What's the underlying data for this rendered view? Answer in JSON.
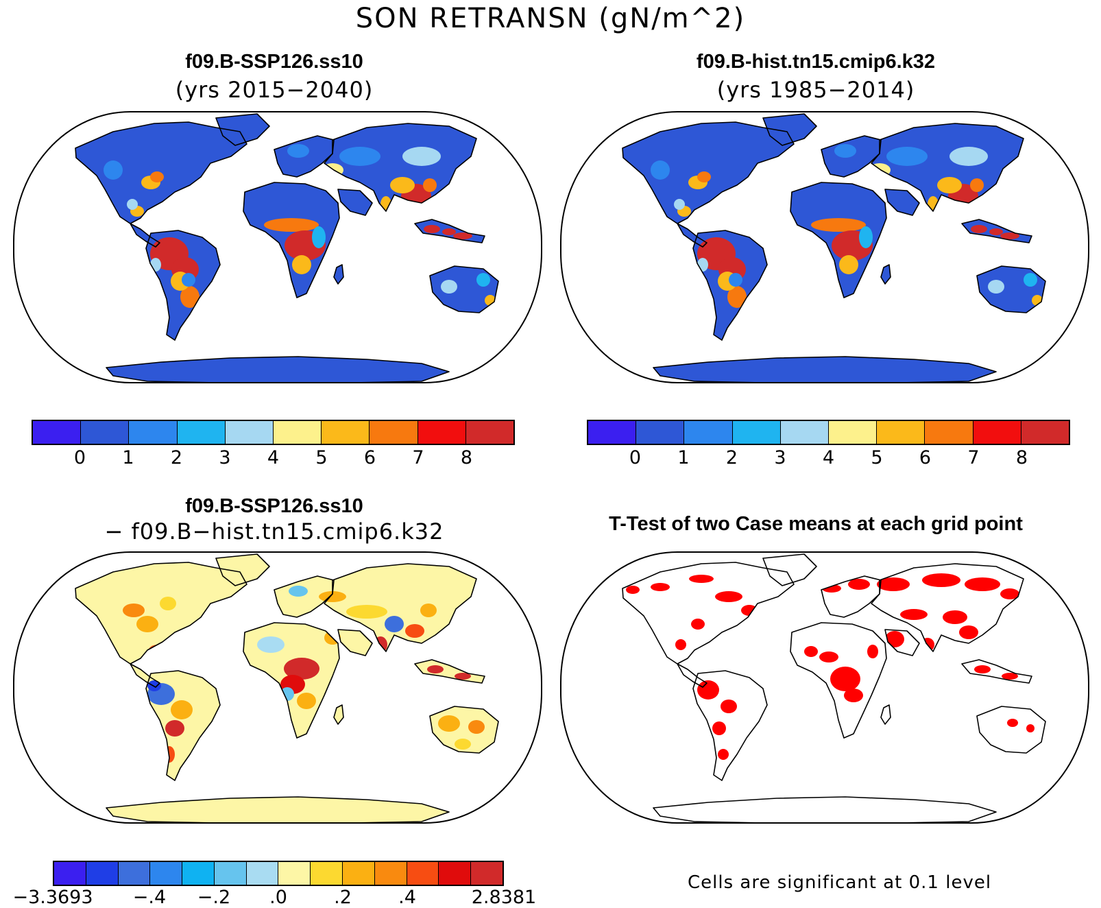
{
  "title": "SON RETRANSN (gN/m^2)",
  "panels": {
    "top_left": {
      "title": "f09.B-SSP126.ss10",
      "subtitle": "(yrs 2015−2040)"
    },
    "top_right": {
      "title": "f09.B-hist.tn15.cmip6.k32",
      "subtitle": "(yrs 1985−2014)"
    },
    "bottom_left": {
      "title": "f09.B-SSP126.ss10",
      "subtitle": "− f09.B−hist.tn15.cmip6.k32"
    },
    "bottom_right": {
      "title": "T-Test of two Case means at each grid point",
      "note": "Cells are significant at 0.1 level"
    }
  },
  "colorbars": {
    "abs": {
      "colors": [
        "#3b1ff0",
        "#2e57d6",
        "#2d86ee",
        "#1fb4f0",
        "#a6d8f2",
        "#fdf18c",
        "#fbb91a",
        "#f7790f",
        "#f20e0e",
        "#d12a2a"
      ],
      "tick_labels": [
        "0",
        "1",
        "2",
        "3",
        "4",
        "5",
        "6",
        "7",
        "8"
      ]
    },
    "diff": {
      "colors": [
        "#3b1ff0",
        "#1f3ee6",
        "#3d6fdc",
        "#2d86ee",
        "#0fb2f2",
        "#66c4ee",
        "#a9dcf2",
        "#fdf6a6",
        "#fcd930",
        "#fbb012",
        "#f98a0f",
        "#f74d12",
        "#e00c0c",
        "#d12a2a"
      ],
      "tick_labels": [
        "−3.3693",
        "−.4",
        "−.2",
        ".0",
        ".2",
        ".4",
        "2.8381"
      ]
    }
  },
  "colors": {
    "significant": "#ff0000",
    "coast": "#000000"
  }
}
